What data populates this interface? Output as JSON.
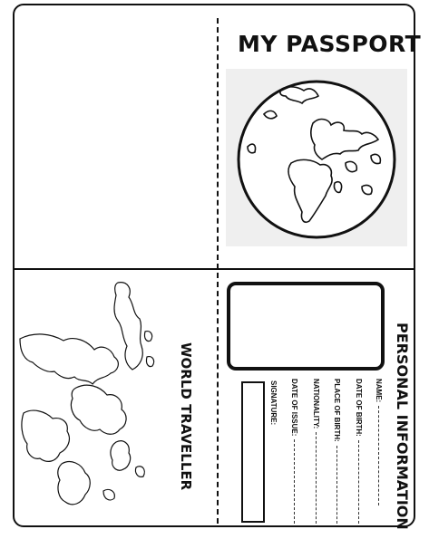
{
  "cover": {
    "title": "MY PASSPORT"
  },
  "inside": {
    "traveller_label": "WORLD TRAVELLER",
    "section_title": "PERSONAL INFORMATION",
    "fields": [
      "NAME:",
      "DATE OF BIRTH:",
      "PLACE OF BIRTH:",
      "NATIONALITY:",
      "DATE OF ISSUE:"
    ],
    "signature_label": "SIGNATURE:"
  }
}
